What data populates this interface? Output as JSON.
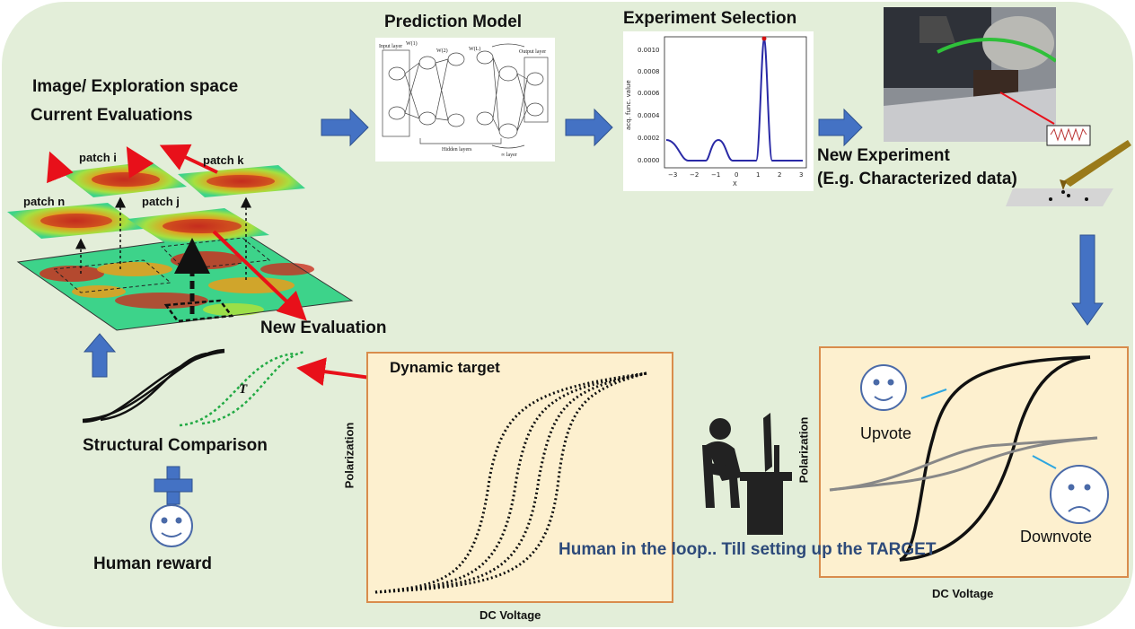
{
  "labels": {
    "image_space": "Image/ Exploration space",
    "current_evaluations": "Current Evaluations",
    "patch_i": "patch i",
    "patch_k": "patch k",
    "patch_n": "patch n",
    "patch_j": "patch j",
    "new_evaluation": "New Evaluation",
    "prediction_model": "Prediction Model",
    "experiment_selection": "Experiment Selection",
    "new_experiment": "New Experiment",
    "characterized": "(E.g. Characterized data)",
    "dynamic_target": "Dynamic target",
    "target_symbol": "T",
    "structural_comparison": "Structural Comparison",
    "human_reward": "Human reward",
    "upvote": "Upvote",
    "downvote": "Downvote",
    "human_loop": "Human in the loop.. Till setting up the TARGET"
  },
  "axes": {
    "polarization": "Polarization",
    "dc_voltage": "DC Voltage"
  },
  "nn": {
    "input_layer": "Input layer",
    "output_layer": "Output layer",
    "hidden_layers": "Hidden layers",
    "inf_layer": "∞ layer",
    "w1": "W(1)",
    "w2": "W(2)",
    "wl": "W(L)"
  },
  "acq_plot": {
    "ylabel": "acq. func. value",
    "xlabel": "X",
    "y_ticks": [
      "0.0010",
      "0.0008",
      "0.0006",
      "0.0004",
      "0.0002",
      "0.0000"
    ],
    "x_ticks": [
      "−3",
      "−2",
      "−1",
      "0",
      "1",
      "2",
      "3"
    ]
  },
  "colors": {
    "background": "#e3eed9",
    "arrow_blue": "#4472c4",
    "box_fill": "#fdf0cf",
    "box_border": "#d98c4c",
    "red": "#e8101a",
    "green_dotted": "#22aa44",
    "loop_text": "#2d4a7a"
  }
}
